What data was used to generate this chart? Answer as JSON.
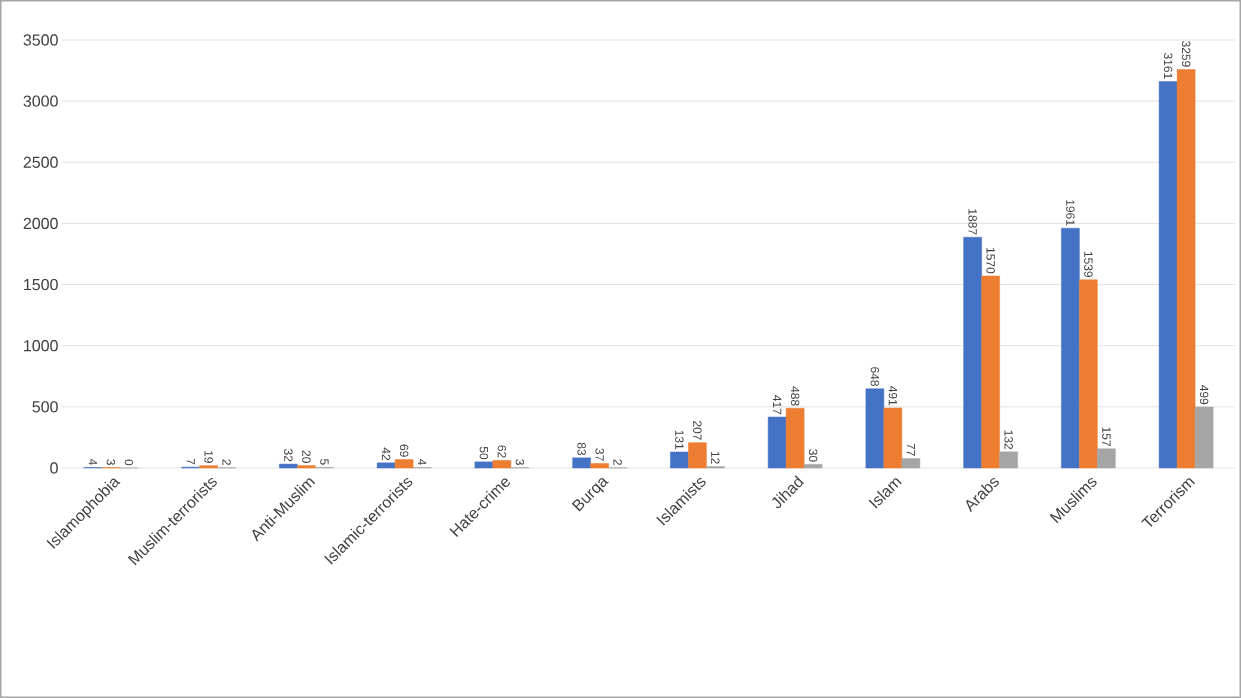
{
  "chart_data": {
    "type": "bar",
    "categories": [
      "Islamophobia",
      "Muslim-terrorists",
      "Anti-Muslim",
      "Islamic-terrorists",
      "Hate-crime",
      "Burqa",
      "Islamists",
      "Jihad",
      "Islam",
      "Arabs",
      "Muslims",
      "Terrorism"
    ],
    "series": [
      {
        "color": "#4472c4",
        "values": [
          4,
          7,
          32,
          42,
          50,
          83,
          131,
          417,
          648,
          1887,
          1961,
          3161
        ],
        "value_labels": [
          "4",
          "7",
          "32",
          "42",
          "50",
          "83",
          "131",
          "417",
          "648",
          "1887",
          "1961",
          "3161"
        ]
      },
      {
        "color": "#ed7d31",
        "values": [
          3,
          19,
          20,
          69,
          62,
          37,
          207,
          488,
          491,
          1570,
          1539,
          3259
        ],
        "value_labels": [
          "3",
          "19",
          "20",
          "69",
          "62",
          "37",
          "207",
          "488",
          "491",
          "1570",
          "1539",
          "3259"
        ]
      },
      {
        "color": "#a5a5a5",
        "values": [
          0,
          2,
          5,
          4,
          3,
          2,
          12,
          30,
          77,
          132,
          157,
          499
        ],
        "value_labels": [
          "0",
          "2",
          "5",
          "4",
          "3",
          "2",
          "12",
          "30",
          "77",
          "132",
          "157",
          "499"
        ]
      }
    ],
    "ylim": [
      0,
      3500
    ],
    "yticks": [
      0,
      500,
      1000,
      1500,
      2000,
      2500,
      3000,
      3500
    ],
    "grid": "y"
  }
}
